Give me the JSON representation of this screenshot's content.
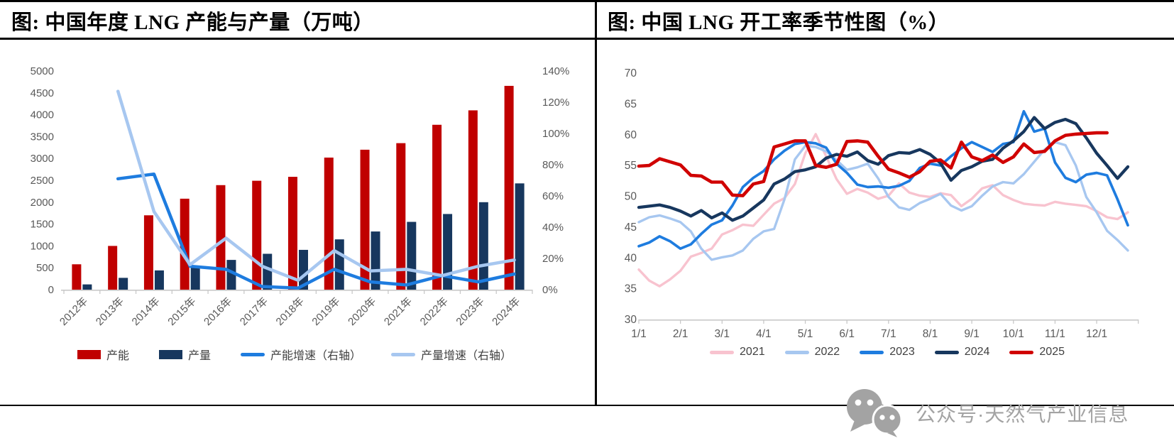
{
  "page": {
    "background": "#FFFFFF",
    "border_color": "#000000",
    "axis_text_color": "#595959",
    "watermark": {
      "icon": "wechat-icon",
      "text": "公众号·天然气产业信息",
      "color": "#A3A3A3"
    }
  },
  "chart_data": [
    {
      "id": "china-annual-lng-capacity-production",
      "type": "bar",
      "subtype": "bar+line-combo",
      "title": "图: 中国年度 LNG 产能与产量（万吨）",
      "categories": [
        "2012年",
        "2013年",
        "2014年",
        "2015年",
        "2016年",
        "2017年",
        "2018年",
        "2019年",
        "2020年",
        "2021年",
        "2022年",
        "2023年",
        "2024年"
      ],
      "left_axis": {
        "min": 0,
        "max": 5000,
        "step": 500,
        "tick_labels": [
          "0",
          "500",
          "1000",
          "1500",
          "2000",
          "2500",
          "3000",
          "3500",
          "4000",
          "4500",
          "5000"
        ]
      },
      "right_axis": {
        "min": 0,
        "max": 140,
        "step": 20,
        "tick_labels": [
          "0%",
          "20%",
          "40%",
          "60%",
          "80%",
          "100%",
          "120%",
          "140%"
        ]
      },
      "grid": false,
      "legend_position": "bottom",
      "series": [
        {
          "name": "产能",
          "type": "bar",
          "axis": "left",
          "color": "#C00000",
          "values": [
            580,
            1000,
            1700,
            2080,
            2390,
            2490,
            2580,
            3020,
            3200,
            3350,
            3770,
            4100,
            4660
          ]
        },
        {
          "name": "产量",
          "type": "bar",
          "axis": "left",
          "color": "#17375E",
          "values": [
            120,
            270,
            440,
            520,
            680,
            820,
            910,
            1150,
            1330,
            1550,
            1730,
            2000,
            2430
          ]
        },
        {
          "name": "产能增速（右轴）",
          "type": "line",
          "axis": "right",
          "color": "#1E7CDF",
          "values": [
            null,
            71,
            74,
            15,
            13,
            2,
            1,
            13,
            5,
            3,
            9,
            5,
            10
          ]
        },
        {
          "name": "产量增速（右轴）",
          "type": "line",
          "axis": "right",
          "color": "#A7C7F0",
          "values": [
            null,
            127,
            50,
            16,
            33,
            15,
            6,
            25,
            12,
            13,
            9,
            15,
            19
          ]
        }
      ]
    },
    {
      "id": "china-lng-operating-rate-seasonality",
      "type": "line",
      "title": "图: 中国 LNG 开工率季节性图（%）",
      "y_axis": {
        "min": 30,
        "max": 70,
        "step": 5,
        "tick_labels": [
          "30",
          "35",
          "40",
          "45",
          "50",
          "55",
          "60",
          "65",
          "70"
        ]
      },
      "x_tick_labels": [
        "1/1",
        "2/1",
        "3/1",
        "4/1",
        "5/1",
        "6/1",
        "7/1",
        "8/1",
        "9/1",
        "10/1",
        "11/1",
        "12/1"
      ],
      "points_per_month": 4,
      "grid": false,
      "legend_position": "bottom",
      "series": [
        {
          "name": "2021",
          "color": "#F8C3CF",
          "values": [
            38.1,
            36.3,
            35.4,
            36.5,
            37.9,
            40.2,
            40.8,
            41.5,
            43.8,
            44.5,
            45.4,
            45.2,
            47.0,
            48.8,
            49.7,
            52.0,
            57.0,
            60.1,
            56.5,
            52.8,
            50.4,
            51.2,
            50.6,
            49.6,
            50.1,
            52.1,
            50.6,
            50.1,
            49.9,
            50.5,
            50.2,
            48.4,
            49.6,
            51.3,
            51.8,
            50.2,
            49.4,
            48.8,
            48.6,
            48.5,
            49.1,
            48.8,
            48.6,
            48.4,
            47.6,
            46.6,
            46.3,
            47.4
          ]
        },
        {
          "name": "2022",
          "color": "#A7C7F0",
          "values": [
            45.8,
            46.6,
            46.9,
            46.4,
            45.8,
            44.3,
            41.5,
            39.7,
            40.1,
            40.4,
            41.2,
            43.1,
            44.3,
            44.7,
            49.5,
            56.0,
            58.2,
            58.0,
            57.3,
            55.9,
            54.3,
            54.7,
            55.3,
            52.9,
            49.9,
            48.2,
            47.8,
            48.9,
            49.6,
            50.4,
            48.5,
            47.7,
            48.4,
            50.1,
            51.6,
            52.3,
            52.1,
            53.6,
            55.6,
            57.6,
            58.8,
            58.3,
            55.0,
            49.9,
            47.4,
            44.4,
            42.9,
            41.2
          ]
        },
        {
          "name": "2023",
          "color": "#1E7CDF",
          "values": [
            41.9,
            42.5,
            43.5,
            42.7,
            41.5,
            42.2,
            43.9,
            45.4,
            46.1,
            48.5,
            51.5,
            53.0,
            54.1,
            56.0,
            57.4,
            58.5,
            58.8,
            58.6,
            57.9,
            55.3,
            53.8,
            51.9,
            51.5,
            51.6,
            51.4,
            51.7,
            52.5,
            54.6,
            55.3,
            55.0,
            56.5,
            57.8,
            58.8,
            58.0,
            57.2,
            58.5,
            58.8,
            63.8,
            60.5,
            61.0,
            55.5,
            53.0,
            52.3,
            53.5,
            53.8,
            53.4,
            49.5,
            45.3
          ]
        },
        {
          "name": "2024",
          "color": "#17375E",
          "values": [
            48.2,
            48.4,
            48.6,
            48.2,
            47.6,
            46.8,
            47.7,
            46.5,
            47.3,
            46.1,
            46.8,
            48.1,
            49.4,
            52.0,
            52.8,
            54.0,
            54.3,
            54.8,
            56.2,
            56.8,
            56.5,
            57.2,
            55.8,
            55.2,
            56.6,
            57.1,
            57.0,
            57.6,
            56.8,
            55.4,
            52.6,
            54.2,
            54.8,
            55.7,
            56.0,
            57.8,
            59.0,
            60.5,
            62.8,
            61.0,
            62.0,
            62.5,
            61.8,
            59.5,
            57.0,
            55.0,
            52.9,
            54.8
          ]
        },
        {
          "name": "2025",
          "color": "#D00000",
          "values": [
            54.9,
            55.0,
            56.1,
            55.6,
            55.1,
            53.4,
            53.3,
            52.3,
            52.3,
            50.2,
            50.1,
            52.0,
            52.4,
            58.0,
            58.5,
            59.0,
            59.0,
            55.0,
            54.7,
            55.2,
            58.9,
            59.0,
            58.8,
            56.5,
            54.4,
            53.8,
            53.1,
            54.0,
            55.7,
            55.9,
            54.6,
            58.8,
            56.4,
            55.8,
            56.7,
            55.5,
            56.4,
            58.5,
            57.1,
            57.3,
            59.0,
            59.9,
            60.1,
            60.2,
            60.3,
            60.3,
            null,
            null
          ]
        }
      ]
    }
  ]
}
